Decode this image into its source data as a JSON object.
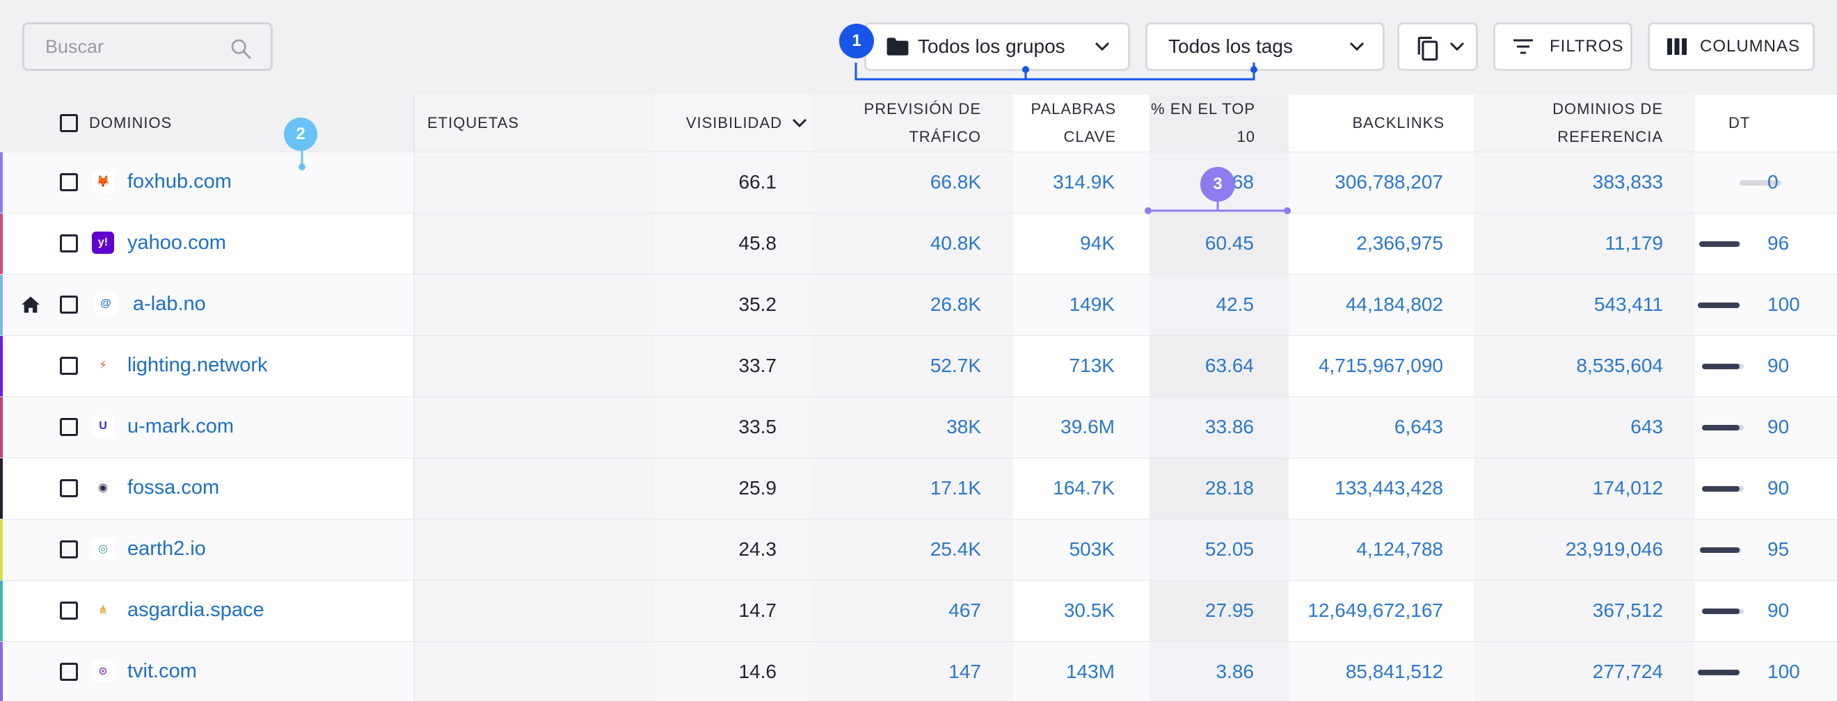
{
  "toolbar": {
    "search_placeholder": "Buscar",
    "groups_label": "Todos los grupos",
    "tags_label": "Todos los tags",
    "filters_label": "FILTROS",
    "columns_label": "COLUMNAS"
  },
  "markers": [
    "1",
    "2",
    "3"
  ],
  "columns": {
    "dominios": "DOMINIOS",
    "etiquetas": "ETIQUETAS",
    "visibilidad": "VISIBILIDAD",
    "prevision_1": "PREVISIÓN DE",
    "prevision_2": "TRÁFICO",
    "palabras_1": "PALABRAS",
    "palabras_2": "CLAVE",
    "top_1": "% EN EL TOP",
    "top_2": "10",
    "backlinks": "BACKLINKS",
    "dominios_ref_1": "DOMINIOS DE",
    "dominios_ref_2": "REFERENCIA",
    "dt": "DT"
  },
  "rows": [
    {
      "domain": "foxhub.com",
      "visibilidad": "66.1",
      "prevision": "66.8K",
      "palabras": "314.9K",
      "top10": "68",
      "backlinks": "306,788,207",
      "dominios_ref": "383,833",
      "dt": "0",
      "dt_level": 0,
      "accent": "#8a7cf0",
      "logo": "fox-logo"
    },
    {
      "domain": "yahoo.com",
      "visibilidad": "45.8",
      "prevision": "40.8K",
      "palabras": "94K",
      "top10": "60.45",
      "backlinks": "2,366,975",
      "dominios_ref": "11,179",
      "dt": "96",
      "dt_level": 0.96,
      "accent": "#d84a7a",
      "logo": "yahoo-logo"
    },
    {
      "domain": "a-lab.no",
      "visibilidad": "35.2",
      "prevision": "26.8K",
      "palabras": "149K",
      "top10": "42.5",
      "backlinks": "44,184,802",
      "dominios_ref": "543,411",
      "dt": "100",
      "dt_level": 1,
      "accent": "#7fb6e6",
      "logo": "a-lab-logo"
    },
    {
      "domain": "lighting.network",
      "visibilidad": "33.7",
      "prevision": "52.7K",
      "palabras": "713K",
      "top10": "63.64",
      "backlinks": "4,715,967,090",
      "dominios_ref": "8,535,604",
      "dt": "90",
      "dt_level": 0.9,
      "accent": "#6a1fe0",
      "logo": "lightning-logo"
    },
    {
      "domain": "u-mark.com",
      "visibilidad": "33.5",
      "prevision": "38K",
      "palabras": "39.6M",
      "top10": "33.86",
      "backlinks": "6,643",
      "dominios_ref": "643",
      "dt": "90",
      "dt_level": 0.9,
      "accent": "#c2447a",
      "logo": "u-mark-logo"
    },
    {
      "domain": "fossa.com",
      "visibilidad": "25.9",
      "prevision": "17.1K",
      "palabras": "164.7K",
      "top10": "28.18",
      "backlinks": "133,443,428",
      "dominios_ref": "174,012",
      "dt": "90",
      "dt_level": 0.9,
      "accent": "#2a1e2e",
      "logo": "fossa-logo"
    },
    {
      "domain": "earth2.io",
      "visibilidad": "24.3",
      "prevision": "25.4K",
      "palabras": "503K",
      "top10": "52.05",
      "backlinks": "4,124,788",
      "dominios_ref": "23,919,046",
      "dt": "95",
      "dt_level": 0.95,
      "accent": "#d8de4a",
      "logo": "earth2-logo"
    },
    {
      "domain": "asgardia.space",
      "visibilidad": "14.7",
      "prevision": "467",
      "palabras": "30.5K",
      "top10": "27.95",
      "backlinks": "12,649,672,167",
      "dominios_ref": "367,512",
      "dt": "90",
      "dt_level": 0.9,
      "accent": "#3eb8a6",
      "logo": "asgardia-logo"
    },
    {
      "domain": "tvit.com",
      "visibilidad": "14.6",
      "prevision": "147",
      "palabras": "143M",
      "top10": "3.86",
      "backlinks": "85,841,512",
      "dominios_ref": "277,724",
      "dt": "100",
      "dt_level": 1,
      "accent": "#8a68e6",
      "logo": "tvit-logo"
    }
  ],
  "colors": {
    "link": "#1d6fc2",
    "value_blue": "#2b77c9",
    "marker_1": "#1756e8",
    "marker_2": "#68c3f4",
    "marker_3": "#8b7cf0",
    "dt_bar": "#3a3e55"
  }
}
